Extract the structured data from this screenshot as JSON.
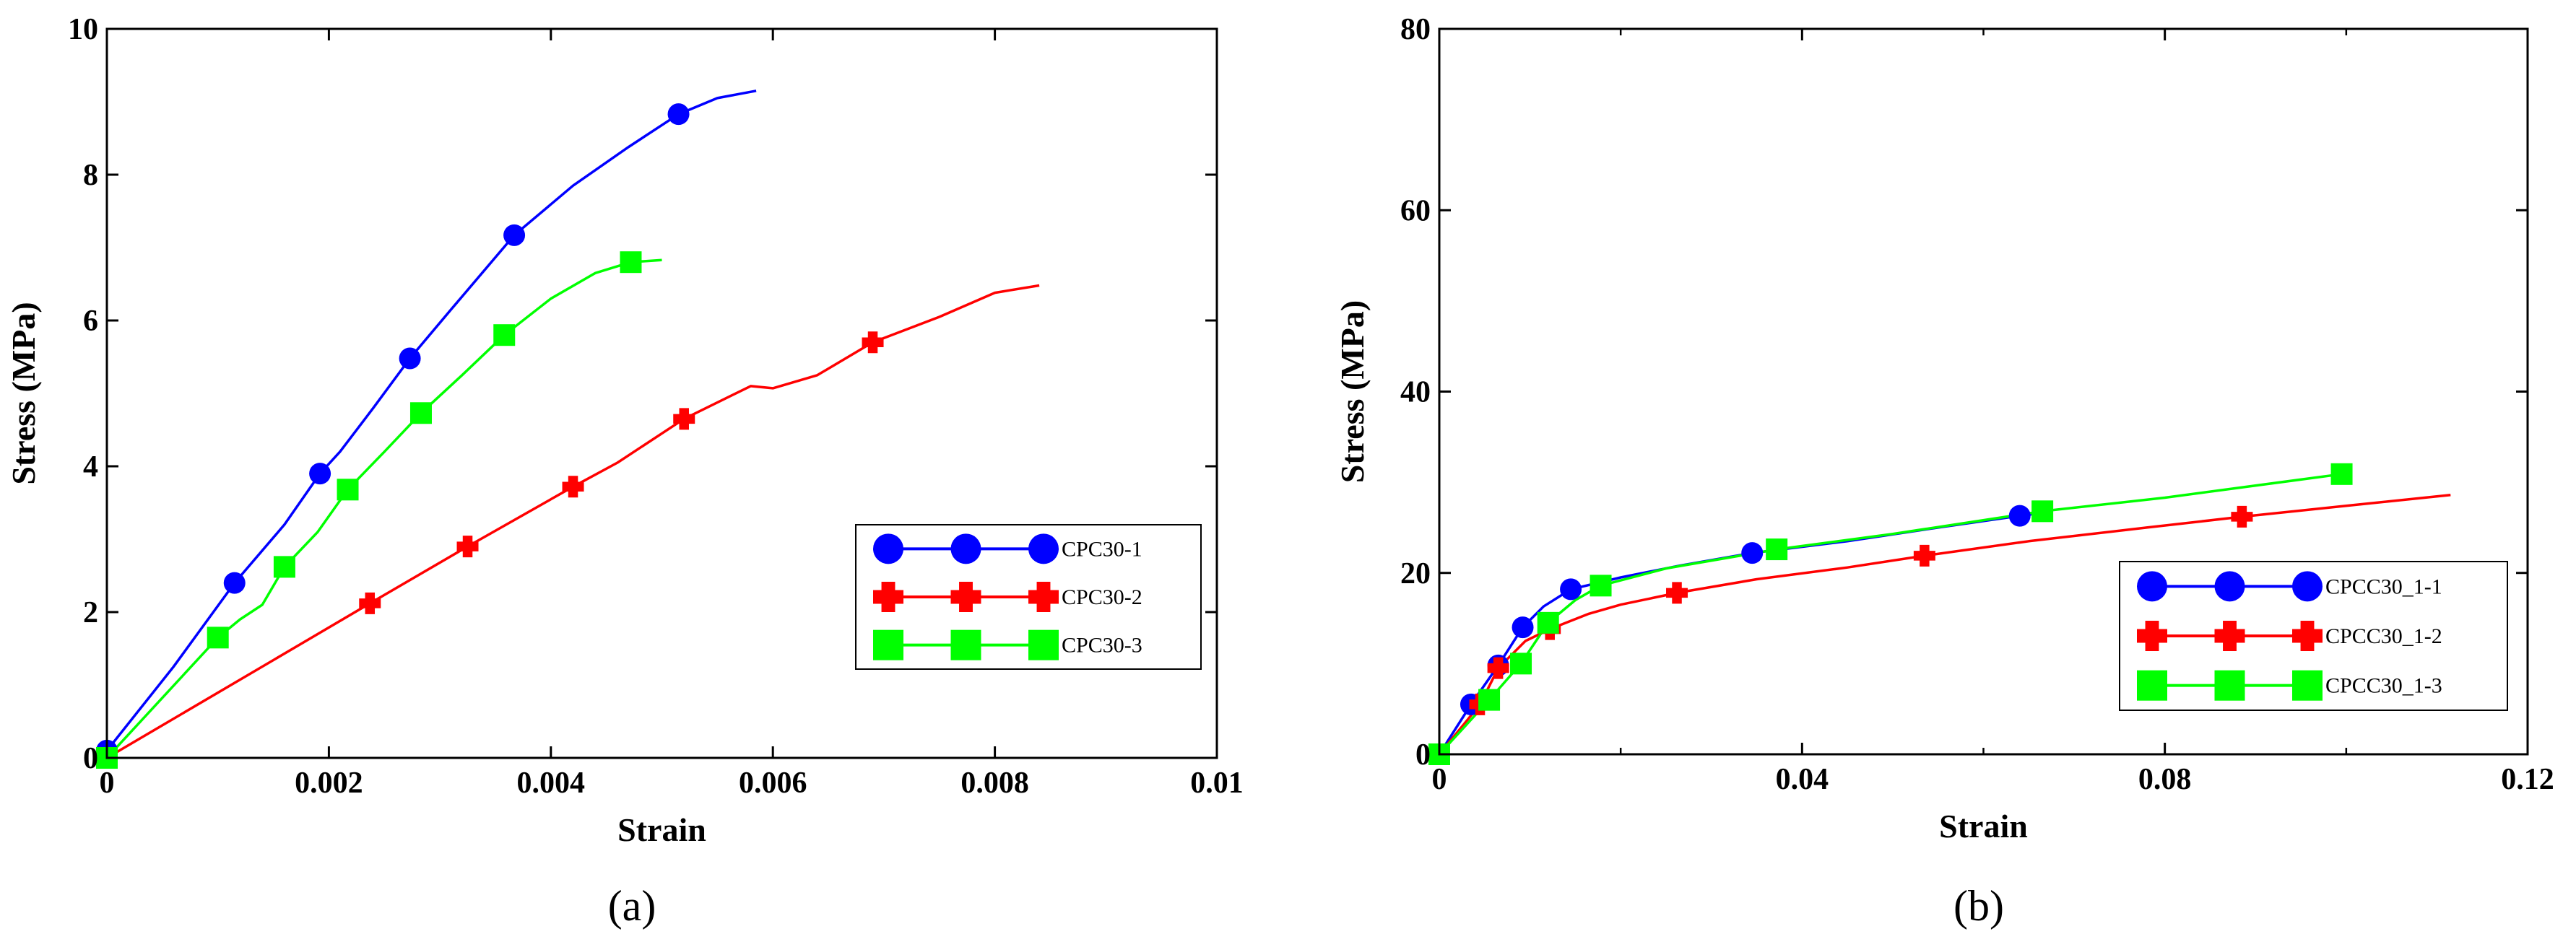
{
  "colors": {
    "blue": "#0000FF",
    "red": "#FF0000",
    "green": "#00FF00",
    "axis": "#000000"
  },
  "chart_data": [
    {
      "id": "a",
      "type": "line",
      "caption": "(a)",
      "xlabel": "Strain",
      "ylabel": "Stress (MPa)",
      "xlim": [
        0,
        0.01
      ],
      "ylim": [
        0,
        10
      ],
      "xticks": [
        0,
        0.002,
        0.004,
        0.006,
        0.008,
        0.01
      ],
      "xtick_labels": [
        "0",
        "0.002",
        "0.004",
        "0.006",
        "0.008",
        "0.01"
      ],
      "yticks": [
        0,
        2,
        4,
        6,
        8,
        10
      ],
      "ytick_labels": [
        "0",
        "2",
        "4",
        "6",
        "8",
        "10"
      ],
      "legend_position": "bottom-right",
      "series": [
        {
          "name": "CPC30-1",
          "color": "blue",
          "marker": "circle",
          "line": [
            [
              0,
              0.1
            ],
            [
              0.0006,
              1.25
            ],
            [
              0.00115,
              2.4
            ],
            [
              0.0016,
              3.2
            ],
            [
              0.00192,
              3.9
            ],
            [
              0.0021,
              4.2
            ],
            [
              0.0024,
              4.8
            ],
            [
              0.00273,
              5.48
            ],
            [
              0.0031,
              6.15
            ],
            [
              0.00367,
              7.17
            ],
            [
              0.0042,
              7.85
            ],
            [
              0.0047,
              8.38
            ],
            [
              0.00515,
              8.83
            ],
            [
              0.0055,
              9.05
            ],
            [
              0.00585,
              9.15
            ]
          ],
          "markers": [
            [
              0,
              0.1
            ],
            [
              0.00115,
              2.4
            ],
            [
              0.00192,
              3.9
            ],
            [
              0.00273,
              5.48
            ],
            [
              0.00367,
              7.17
            ],
            [
              0.00515,
              8.83
            ]
          ]
        },
        {
          "name": "CPC30-2",
          "color": "red",
          "marker": "plus",
          "line": [
            [
              0,
              0
            ],
            [
              0.00237,
              2.12
            ],
            [
              0.00325,
              2.9
            ],
            [
              0.0042,
              3.72
            ],
            [
              0.0046,
              4.05
            ],
            [
              0.0052,
              4.65
            ],
            [
              0.0058,
              5.1
            ],
            [
              0.006,
              5.07
            ],
            [
              0.0064,
              5.25
            ],
            [
              0.0069,
              5.7
            ],
            [
              0.0075,
              6.05
            ],
            [
              0.008,
              6.38
            ],
            [
              0.0084,
              6.48
            ]
          ],
          "markers": [
            [
              0.00237,
              2.12
            ],
            [
              0.00325,
              2.9
            ],
            [
              0.0042,
              3.72
            ],
            [
              0.0052,
              4.65
            ],
            [
              0.0069,
              5.7
            ]
          ]
        },
        {
          "name": "CPC30-3",
          "color": "green",
          "marker": "square",
          "line": [
            [
              0,
              0
            ],
            [
              0.001,
              1.65
            ],
            [
              0.0012,
              1.9
            ],
            [
              0.0014,
              2.1
            ],
            [
              0.0016,
              2.62
            ],
            [
              0.0019,
              3.1
            ],
            [
              0.00217,
              3.68
            ],
            [
              0.0025,
              4.2
            ],
            [
              0.00283,
              4.73
            ],
            [
              0.0032,
              5.25
            ],
            [
              0.00358,
              5.8
            ],
            [
              0.004,
              6.3
            ],
            [
              0.0044,
              6.65
            ],
            [
              0.00472,
              6.8
            ],
            [
              0.005,
              6.83
            ]
          ],
          "markers": [
            [
              0,
              0
            ],
            [
              0.001,
              1.65
            ],
            [
              0.0016,
              2.62
            ],
            [
              0.00217,
              3.68
            ],
            [
              0.00283,
              4.73
            ],
            [
              0.00358,
              5.8
            ],
            [
              0.00472,
              6.8
            ]
          ]
        }
      ]
    },
    {
      "id": "b",
      "type": "line",
      "caption": "(b)",
      "xlabel": "Strain",
      "ylabel": "Stress (MPa)",
      "xlim": [
        0,
        0.12
      ],
      "ylim": [
        0,
        80
      ],
      "xticks": [
        0,
        0.04,
        0.08,
        0.12
      ],
      "xtick_labels": [
        "0",
        "0.04",
        "0.08",
        "0.12"
      ],
      "xticks_minor": [
        0.02,
        0.06,
        0.1
      ],
      "yticks": [
        0,
        20,
        40,
        60,
        80
      ],
      "ytick_labels": [
        "0",
        "20",
        "40",
        "60",
        "80"
      ],
      "legend_position": "bottom-right",
      "series": [
        {
          "name": "CPCC30_1-1",
          "color": "blue",
          "marker": "circle",
          "line": [
            [
              0,
              0
            ],
            [
              0.0035,
              5.5
            ],
            [
              0.0065,
              9.8
            ],
            [
              0.0092,
              14
            ],
            [
              0.0115,
              16.3
            ],
            [
              0.0145,
              18.2
            ],
            [
              0.02,
              19.5
            ],
            [
              0.0265,
              20.8
            ],
            [
              0.0345,
              22.2
            ],
            [
              0.045,
              23.5
            ],
            [
              0.055,
              25
            ],
            [
              0.064,
              26.3
            ],
            [
              0.067,
              26.7
            ]
          ],
          "markers": [
            [
              0,
              0
            ],
            [
              0.0035,
              5.5
            ],
            [
              0.0065,
              9.8
            ],
            [
              0.0092,
              14
            ],
            [
              0.0145,
              18.2
            ],
            [
              0.0345,
              22.2
            ],
            [
              0.064,
              26.3
            ]
          ]
        },
        {
          "name": "CPCC30_1-2",
          "color": "red",
          "marker": "plus",
          "line": [
            [
              0,
              0
            ],
            [
              0.0045,
              5.5
            ],
            [
              0.0065,
              9.5
            ],
            [
              0.0095,
              12.5
            ],
            [
              0.0122,
              13.8
            ],
            [
              0.0165,
              15.5
            ],
            [
              0.02,
              16.5
            ],
            [
              0.0262,
              17.8
            ],
            [
              0.035,
              19.3
            ],
            [
              0.045,
              20.6
            ],
            [
              0.0535,
              21.9
            ],
            [
              0.065,
              23.5
            ],
            [
              0.078,
              25
            ],
            [
              0.0885,
              26.2
            ],
            [
              0.1,
              27.4
            ],
            [
              0.1115,
              28.6
            ]
          ],
          "markers": [
            [
              0,
              0
            ],
            [
              0.0045,
              5.5
            ],
            [
              0.0065,
              9.5
            ],
            [
              0.0122,
              13.8
            ],
            [
              0.0262,
              17.8
            ],
            [
              0.0535,
              21.9
            ],
            [
              0.0885,
              26.2
            ]
          ]
        },
        {
          "name": "CPCC30_1-3",
          "color": "green",
          "marker": "square",
          "line": [
            [
              0,
              0
            ],
            [
              0.0055,
              6
            ],
            [
              0.009,
              10
            ],
            [
              0.012,
              14.5
            ],
            [
              0.015,
              17
            ],
            [
              0.0178,
              18.6
            ],
            [
              0.025,
              20.5
            ],
            [
              0.0372,
              22.6
            ],
            [
              0.05,
              24.3
            ],
            [
              0.0665,
              26.8
            ],
            [
              0.08,
              28.3
            ],
            [
              0.0995,
              30.9
            ]
          ],
          "markers": [
            [
              0,
              0
            ],
            [
              0.0055,
              6
            ],
            [
              0.009,
              10
            ],
            [
              0.012,
              14.5
            ],
            [
              0.0178,
              18.6
            ],
            [
              0.0372,
              22.6
            ],
            [
              0.0665,
              26.8
            ],
            [
              0.0995,
              30.9
            ]
          ]
        }
      ]
    }
  ]
}
